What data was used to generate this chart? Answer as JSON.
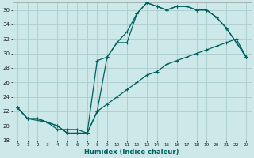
{
  "xlabel": "Humidex (Indice chaleur)",
  "bg_color": "#cce8e8",
  "grid_color": "#aacccc",
  "line_color": "#006060",
  "xlim": [
    -0.5,
    23.5
  ],
  "ylim": [
    18,
    37
  ],
  "xticks": [
    0,
    1,
    2,
    3,
    4,
    5,
    6,
    7,
    8,
    9,
    10,
    11,
    12,
    13,
    14,
    15,
    16,
    17,
    18,
    19,
    20,
    21,
    22,
    23
  ],
  "yticks": [
    18,
    20,
    22,
    24,
    26,
    28,
    30,
    32,
    34,
    36
  ],
  "line1_x": [
    0,
    1,
    2,
    3,
    4,
    5,
    6,
    7,
    8,
    9,
    10,
    11,
    12,
    13,
    14,
    15,
    16,
    17,
    18,
    19,
    20,
    21,
    22,
    23
  ],
  "line1_y": [
    22.5,
    21.0,
    21.0,
    20.5,
    19.5,
    19.5,
    19.5,
    19.0,
    29.0,
    29.5,
    31.5,
    31.5,
    35.5,
    37.0,
    36.5,
    36.0,
    36.5,
    36.5,
    36.0,
    36.0,
    35.0,
    33.5,
    31.5,
    29.5
  ],
  "line2_x": [
    0,
    1,
    3,
    4,
    5,
    6,
    7,
    8,
    9,
    10,
    11,
    12,
    13,
    14,
    15,
    16,
    17,
    18,
    19,
    20,
    21,
    22,
    23
  ],
  "line2_y": [
    22.5,
    21.0,
    20.5,
    20.0,
    19.0,
    19.0,
    19.0,
    22.0,
    29.5,
    31.5,
    33.0,
    35.5,
    37.0,
    36.5,
    36.0,
    36.5,
    36.5,
    36.0,
    36.0,
    35.0,
    33.5,
    31.5,
    29.5
  ],
  "line3_x": [
    0,
    1,
    2,
    3,
    4,
    5,
    6,
    7,
    8,
    9,
    10,
    11,
    12,
    13,
    14,
    15,
    16,
    17,
    18,
    19,
    20,
    21,
    22,
    23
  ],
  "line3_y": [
    22.5,
    21.0,
    21.0,
    20.5,
    20.0,
    19.0,
    19.0,
    19.0,
    22.0,
    23.0,
    24.0,
    25.0,
    26.0,
    27.0,
    27.5,
    28.5,
    29.0,
    29.5,
    30.0,
    30.5,
    31.0,
    31.5,
    32.0,
    29.5
  ]
}
